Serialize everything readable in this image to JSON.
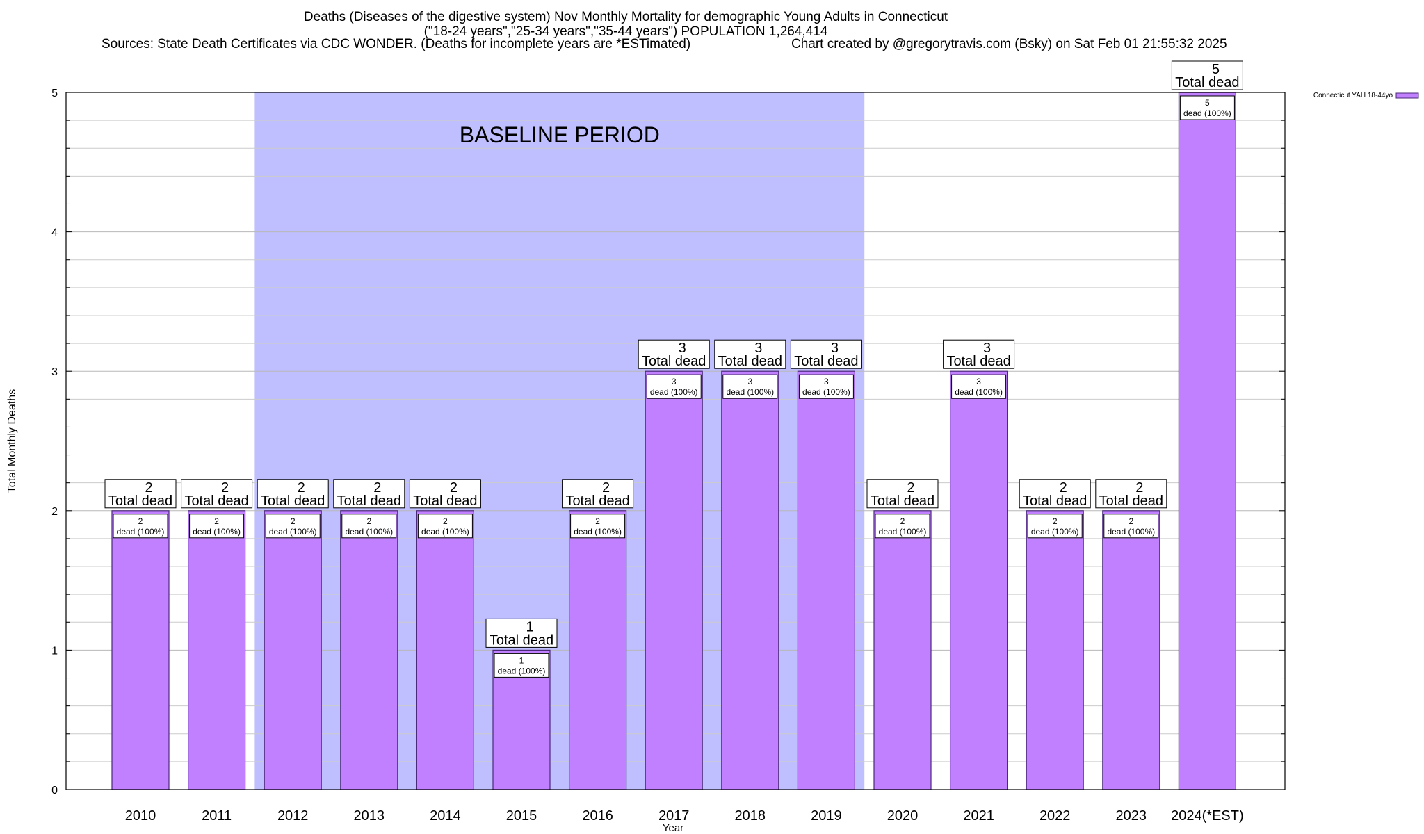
{
  "title_lines": [
    "Deaths (Diseases of the digestive system) Nov Monthly Mortality for demographic Young Adults in Connecticut",
    "(\"18-24 years\",\"25-34 years\",\"35-44 years\") POPULATION 1,264,414"
  ],
  "sources_left": "Sources: State Death Certificates via CDC WONDER. (Deaths for incomplete years are *ESTimated)",
  "sources_right": "Chart created by @gregorytravis.com (Bsky) on Sat Feb 01 21:55:32 2025",
  "chart_data": {
    "type": "bar",
    "categories": [
      "2010",
      "2011",
      "2012",
      "2013",
      "2014",
      "2015",
      "2016",
      "2017",
      "2018",
      "2019",
      "2020",
      "2021",
      "2022",
      "2023",
      "2024(*EST)"
    ],
    "series": [
      {
        "name": "Connecticut YAH 18-44yo",
        "values": [
          2,
          2,
          2,
          2,
          2,
          1,
          2,
          3,
          3,
          3,
          2,
          3,
          2,
          2,
          5
        ]
      }
    ],
    "xlabel": "Year",
    "ylabel": "Total Monthly Deaths",
    "ylim": [
      0,
      5
    ],
    "yticks": [
      0,
      1,
      2,
      3,
      4,
      5
    ],
    "grid": true,
    "legend_position": "top-right",
    "bar_color": "#c080ff",
    "baseline_color": "#bfbfff",
    "baseline_label": "BASELINE PERIOD",
    "baseline_range": [
      "2012",
      "2019"
    ],
    "total_label_suffix": "Total dead",
    "bar_label_suffix": "dead (100%)"
  }
}
